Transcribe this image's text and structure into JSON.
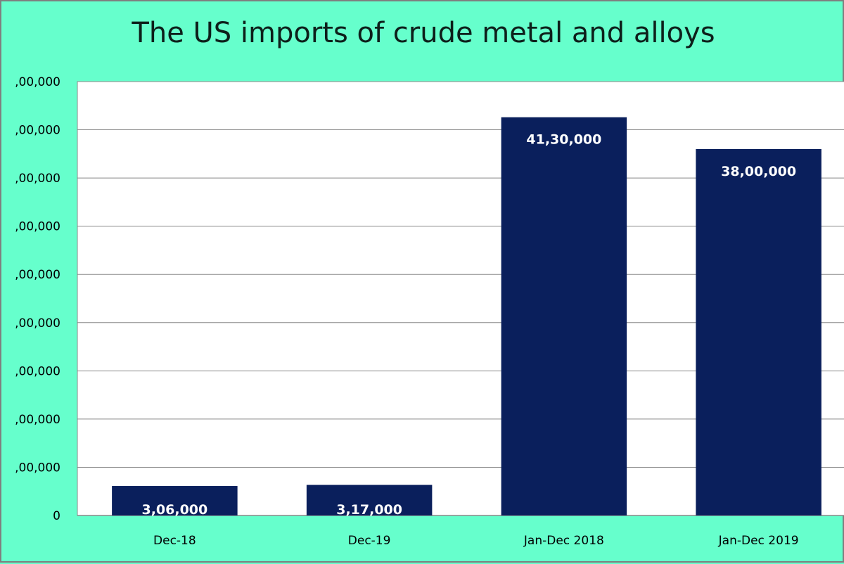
{
  "chart_data": {
    "type": "bar",
    "title": "The US imports of crude metal and alloys",
    "categories": [
      "Dec-18",
      "Dec-19",
      "Jan-Dec 2018",
      "Jan-Dec 2019"
    ],
    "values": [
      306000,
      317000,
      4130000,
      3800000
    ],
    "data_labels": [
      "3,06,000",
      "3,17,000",
      "41,30,000",
      "38,00,000"
    ],
    "ylim": [
      0,
      4500000
    ],
    "ytick_values": [
      0,
      500000,
      1000000,
      1500000,
      2000000,
      2500000,
      3000000,
      3500000,
      4000000,
      4500000
    ],
    "ytick_labels": [
      "0",
      ",00,000",
      ",00,000",
      ",00,000",
      ",00,000",
      ",00,000",
      ",00,000",
      ",00,000",
      ",00,000",
      ",00,000"
    ],
    "xlabel": "",
    "ylabel": "",
    "grid": true,
    "legend": "none",
    "colors": {
      "background": "#66ffcc",
      "plot_area": "#ffffff",
      "bar": "#0a1f5c",
      "gridline": "#888888",
      "data_label": "#ffffff"
    }
  }
}
